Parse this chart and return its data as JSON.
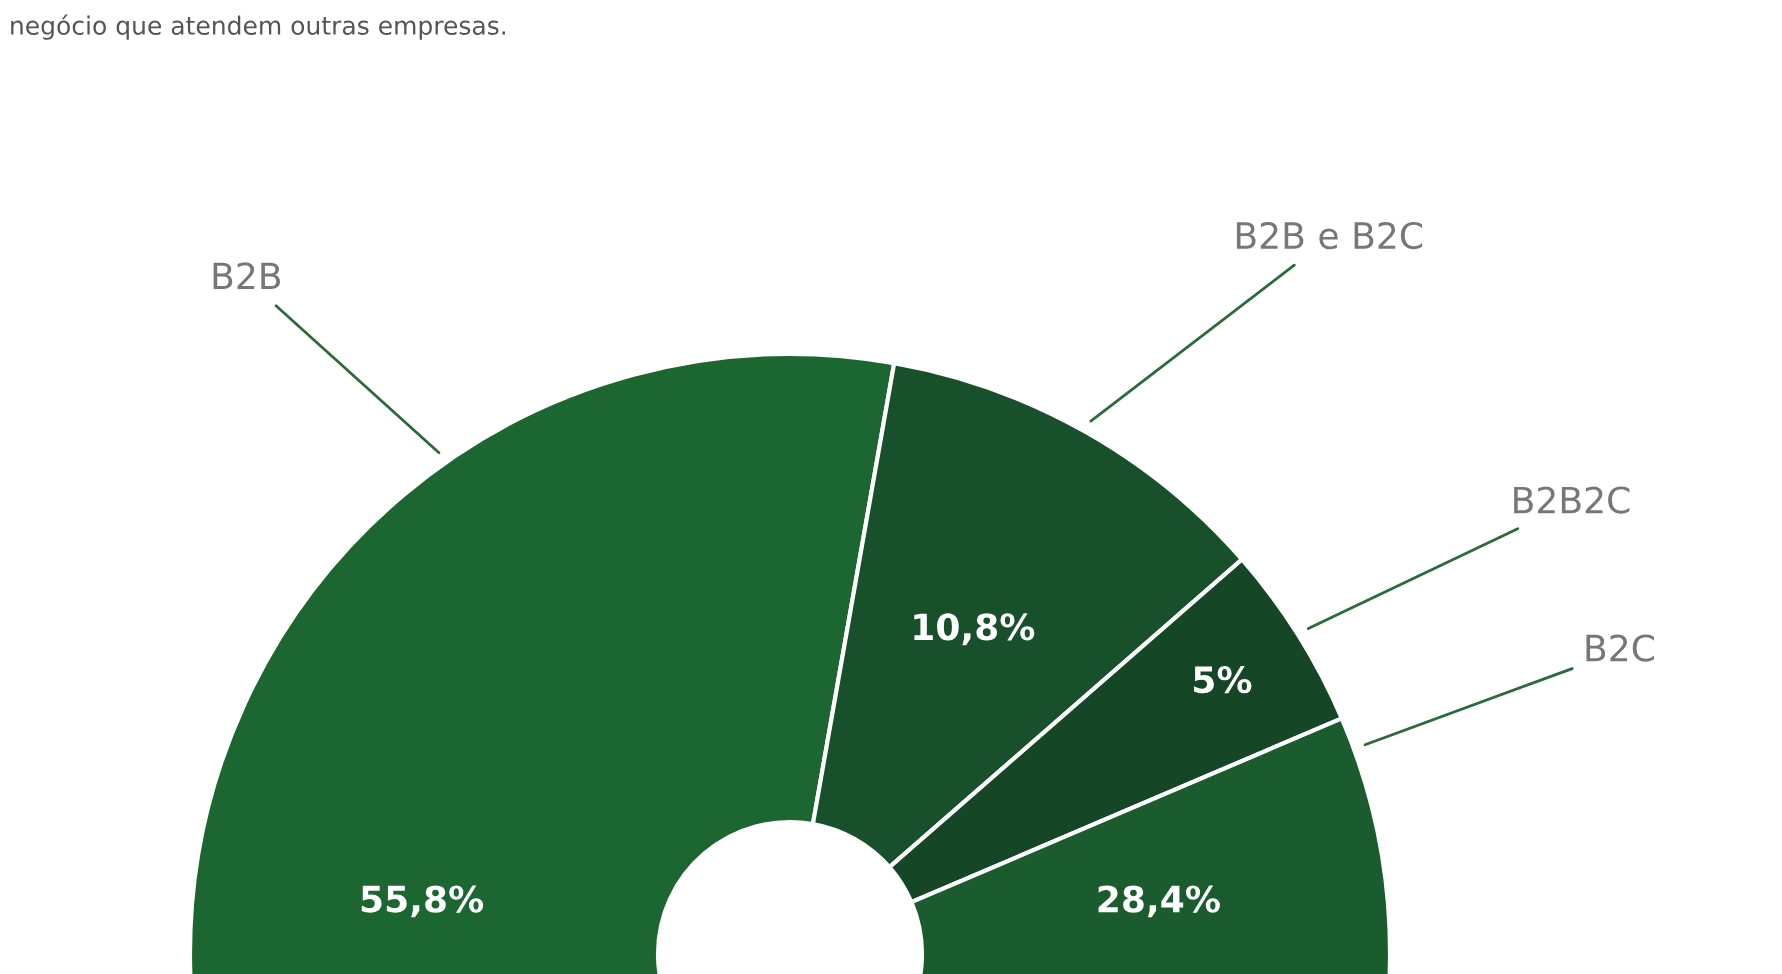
{
  "chart_data": {
    "type": "donut",
    "subtitle": "negócio que atendem outras empresas.",
    "categories": [
      "B2B",
      "B2B e B2C",
      "B2B2C",
      "B2C"
    ],
    "values": [
      55.8,
      10.8,
      5,
      28.4
    ],
    "colors": [
      "#1c6631",
      "#17502a",
      "#154626",
      "#1a5c2e"
    ],
    "value_labels": [
      "55,8%",
      "10,8%",
      "5%",
      "28,4%"
    ],
    "legend": false
  }
}
